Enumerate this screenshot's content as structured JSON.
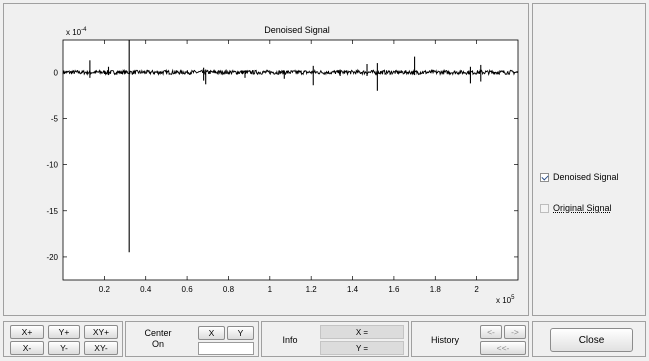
{
  "chart_data": {
    "type": "line",
    "title": "Denoised Signal",
    "y_exponent_label": "x 10",
    "y_exponent_power": "-4",
    "x_exponent_label": "x 10",
    "x_exponent_power": "5",
    "xlim": [
      0,
      2.2
    ],
    "ylim": [
      -22.5,
      3.5
    ],
    "x_ticks": [
      0.2,
      0.4,
      0.6,
      0.8,
      1,
      1.2,
      1.4,
      1.6,
      1.8,
      2
    ],
    "x_tick_labels": [
      "0.2",
      "0.4",
      "0.6",
      "0.8",
      "1",
      "1.2",
      "1.4",
      "1.6",
      "1.8",
      "2"
    ],
    "y_ticks": [
      0,
      -5,
      -10,
      -15,
      -20
    ],
    "y_tick_labels": [
      "0",
      "-5",
      "-10",
      "-15",
      "-20"
    ],
    "baseline": 0,
    "spikes": [
      {
        "x": 0.13,
        "top": 1.3,
        "bottom": -0.6
      },
      {
        "x": 0.22,
        "top": 0.6,
        "bottom": -0.3
      },
      {
        "x": 0.32,
        "top": 3.5,
        "bottom": -19.5
      },
      {
        "x": 0.68,
        "top": 0.5,
        "bottom": -0.9
      },
      {
        "x": 0.69,
        "top": 0.3,
        "bottom": -1.3
      },
      {
        "x": 0.88,
        "top": 0.2,
        "bottom": -0.6
      },
      {
        "x": 1.07,
        "top": 0.2,
        "bottom": -0.7
      },
      {
        "x": 1.21,
        "top": 0.7,
        "bottom": -1.4
      },
      {
        "x": 1.34,
        "top": 0.3,
        "bottom": -0.4
      },
      {
        "x": 1.47,
        "top": 0.9,
        "bottom": -0.4
      },
      {
        "x": 1.52,
        "top": 1.0,
        "bottom": -2.0
      },
      {
        "x": 1.7,
        "top": 1.7,
        "bottom": -0.3
      },
      {
        "x": 1.97,
        "top": 0.6,
        "bottom": -1.2
      },
      {
        "x": 2.02,
        "top": 0.8,
        "bottom": -1.0
      }
    ]
  },
  "legend_panel": {
    "denoised_label": "Denoised Signal",
    "denoised_checked": true,
    "original_label": "Original Signal",
    "original_checked": false
  },
  "zoom": {
    "x_plus": "X+",
    "y_plus": "Y+",
    "xy_plus": "XY+",
    "x_minus": "X-",
    "y_minus": "Y-",
    "xy_minus": "XY-"
  },
  "center": {
    "label_line1": "Center",
    "label_line2": "On",
    "x_btn": "X",
    "y_btn": "Y",
    "value": ""
  },
  "info": {
    "label": "Info",
    "x_readout": "X =",
    "y_readout": "Y ="
  },
  "history": {
    "label": "History",
    "back": "<-",
    "forward": "->",
    "rewind": "<<-"
  },
  "close_label": "Close"
}
